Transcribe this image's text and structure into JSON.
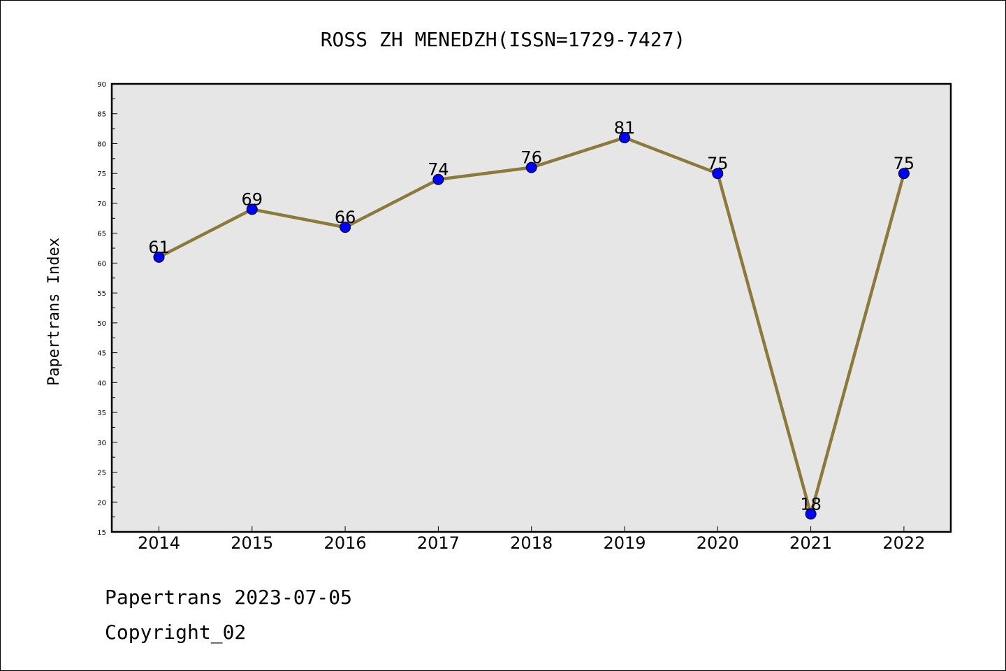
{
  "chart_data": {
    "type": "line",
    "title": "ROSS ZH MENEDZH(ISSN=1729-7427)",
    "xlabel": "",
    "ylabel": "Papertrans Index",
    "categories": [
      "2014",
      "2015",
      "2016",
      "2017",
      "2018",
      "2019",
      "2020",
      "2021",
      "2022"
    ],
    "values": [
      61,
      69,
      66,
      74,
      76,
      81,
      75,
      18,
      75
    ],
    "ylim": [
      15,
      90
    ],
    "yticks": [
      "15",
      "20",
      "25",
      "30",
      "35",
      "40",
      "45",
      "50",
      "55",
      "60",
      "65",
      "70",
      "75",
      "80",
      "85",
      "90"
    ],
    "grid": false,
    "colors": {
      "line": "#8c7a3a",
      "marker": "#0000ff",
      "plot_background": "#e6e6e6"
    }
  },
  "footer": {
    "line1": "Papertrans 2023-07-05",
    "line2": "Copyright_02"
  }
}
